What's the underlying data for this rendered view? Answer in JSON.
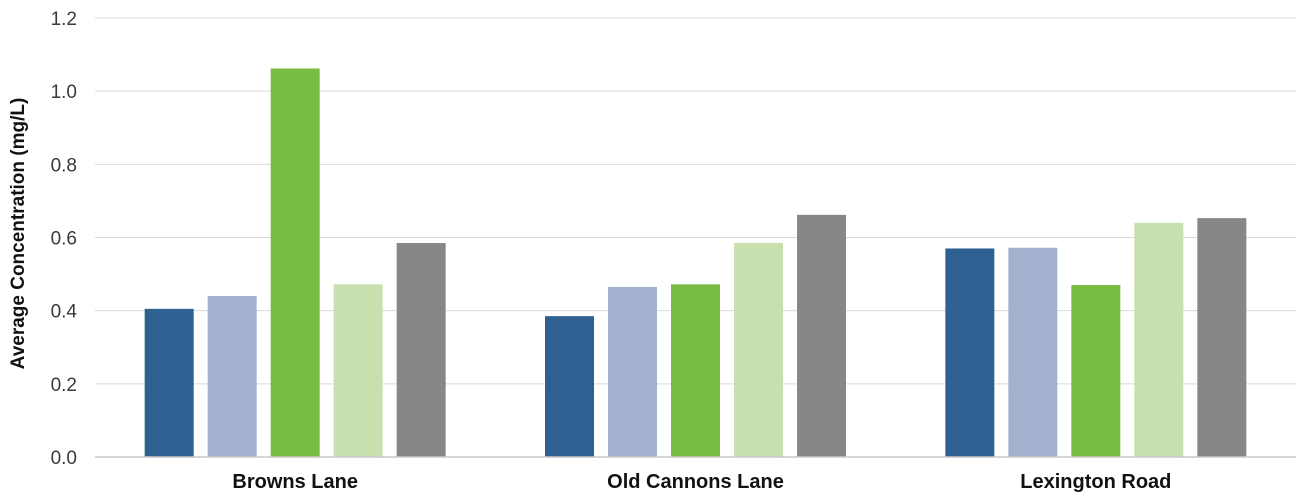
{
  "chart_data": {
    "type": "bar",
    "title": "",
    "xlabel": "",
    "ylabel": "Average Concentration (mg/L)",
    "ylim": [
      0,
      1.2
    ],
    "yticks": [
      "0.0",
      "0.2",
      "0.4",
      "0.6",
      "0.8",
      "1.0",
      "1.2"
    ],
    "ytick_values": [
      0,
      0.2,
      0.4,
      0.6,
      0.8,
      1.0,
      1.2
    ],
    "grid": true,
    "legend": "none",
    "categories": [
      "Browns Lane",
      "Old Cannons Lane",
      "Lexington Road"
    ],
    "series": [
      {
        "color": "#2e6092",
        "values": [
          0.405,
          0.385,
          0.57
        ]
      },
      {
        "color": "#a3b1cf",
        "values": [
          0.44,
          0.465,
          0.572
        ]
      },
      {
        "color": "#78bc43",
        "values": [
          1.062,
          0.472,
          0.47
        ]
      },
      {
        "color": "#c8e0b0",
        "values": [
          0.472,
          0.585,
          0.64
        ]
      },
      {
        "color": "#878787",
        "values": [
          0.585,
          0.662,
          0.653
        ]
      }
    ]
  }
}
